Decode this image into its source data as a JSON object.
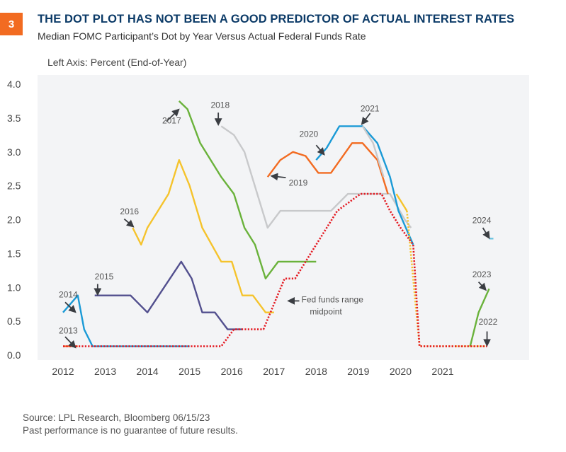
{
  "figure": {
    "number": "3",
    "title": "THE DOT PLOT HAS NOT BEEN A GOOD PREDICTOR OF ACTUAL INTEREST RATES",
    "subtitle": "Median FOMC Participant’s Dot by Year Versus Actual Federal Funds Rate",
    "axis_label": "Left Axis: Percent (End-of-Year)",
    "source": "Source: LPL Research, Bloomberg  06/15/23",
    "disclaimer": "Past performance is no guarantee of future results.",
    "badge_color": "#f26b21",
    "title_color": "#0b3a67"
  },
  "chart_data": {
    "type": "line",
    "title": "THE DOT PLOT HAS NOT BEEN A GOOD PREDICTOR OF ACTUAL INTEREST RATES",
    "subtitle": "Median FOMC Participant’s Dot by Year Versus Actual Federal Funds Rate",
    "xlabel": "",
    "ylabel": "Left Axis: Percent (End-of-Year)",
    "xlim": [
      2011.6,
      2023.2
    ],
    "ylim": [
      0,
      4.0
    ],
    "x_ticks": [
      "2012",
      "2013",
      "2014",
      "2015",
      "2016",
      "2017",
      "2018",
      "2019",
      "2020",
      "2021"
    ],
    "y_ticks": [
      "0.0",
      "0.5",
      "1.0",
      "1.5",
      "2.0",
      "2.5",
      "3.0",
      "3.5",
      "4.0"
    ],
    "grid": false,
    "background": "#f3f4f6",
    "series": [
      {
        "name": "2013",
        "color": "#f26b21",
        "style": "solid",
        "points": [
          [
            2012.0,
            0.13
          ],
          [
            2012.35,
            0.13
          ]
        ]
      },
      {
        "name": "2014",
        "color": "#1a9ad6",
        "style": "solid",
        "points": [
          [
            2012.0,
            0.63
          ],
          [
            2012.35,
            0.88
          ],
          [
            2012.5,
            0.38
          ],
          [
            2012.7,
            0.13
          ],
          [
            2015.0,
            0.13
          ]
        ]
      },
      {
        "name": "2015",
        "color": "#524f8e",
        "style": "solid",
        "points": [
          [
            2012.75,
            0.88
          ],
          [
            2013.6,
            0.88
          ],
          [
            2014.0,
            0.63
          ],
          [
            2014.8,
            1.38
          ],
          [
            2015.05,
            1.13
          ],
          [
            2015.3,
            0.63
          ],
          [
            2015.6,
            0.63
          ],
          [
            2015.9,
            0.38
          ],
          [
            2016.25,
            0.38
          ]
        ]
      },
      {
        "name": "2016",
        "color": "#f5c32c",
        "style": "solid",
        "points": [
          [
            2013.65,
            1.88
          ],
          [
            2013.85,
            1.63
          ],
          [
            2014.0,
            1.88
          ],
          [
            2014.25,
            2.13
          ],
          [
            2014.5,
            2.38
          ],
          [
            2014.75,
            2.88
          ],
          [
            2015.0,
            2.5
          ],
          [
            2015.3,
            1.88
          ],
          [
            2015.75,
            1.38
          ],
          [
            2016.0,
            1.38
          ],
          [
            2016.25,
            0.88
          ],
          [
            2016.5,
            0.88
          ],
          [
            2016.8,
            0.63
          ],
          [
            2017.0,
            0.63
          ]
        ]
      },
      {
        "name": "2017",
        "color": "#6ab23b",
        "style": "solid",
        "points": [
          [
            2014.75,
            3.75
          ],
          [
            2014.95,
            3.63
          ],
          [
            2015.25,
            3.13
          ],
          [
            2015.75,
            2.63
          ],
          [
            2016.05,
            2.38
          ],
          [
            2016.3,
            1.88
          ],
          [
            2016.55,
            1.63
          ],
          [
            2016.8,
            1.13
          ],
          [
            2017.1,
            1.38
          ],
          [
            2018.0,
            1.38
          ]
        ]
      },
      {
        "name": "2018",
        "color": "#c8c9cb",
        "style": "solid",
        "points": [
          [
            2015.75,
            3.38
          ],
          [
            2016.05,
            3.25
          ],
          [
            2016.3,
            3.0
          ],
          [
            2016.85,
            1.88
          ],
          [
            2017.15,
            2.13
          ],
          [
            2018.35,
            2.13
          ],
          [
            2018.75,
            2.38
          ],
          [
            2019.45,
            2.38
          ],
          [
            2019.75,
            2.38
          ],
          [
            2020.1,
            2.0
          ],
          [
            2020.25,
            1.88
          ]
        ]
      },
      {
        "name": "2019",
        "color": "#f26b21",
        "style": "solid",
        "points": [
          [
            2016.85,
            2.63
          ],
          [
            2017.15,
            2.88
          ],
          [
            2017.45,
            3.0
          ],
          [
            2017.75,
            2.94
          ],
          [
            2018.05,
            2.69
          ],
          [
            2018.35,
            2.69
          ],
          [
            2018.85,
            3.13
          ],
          [
            2019.1,
            3.13
          ],
          [
            2019.45,
            2.88
          ],
          [
            2019.7,
            2.38
          ]
        ]
      },
      {
        "name": "2020",
        "color": "#1a9ad6",
        "style": "solid",
        "points": [
          [
            2018.0,
            2.88
          ],
          [
            2018.25,
            3.06
          ],
          [
            2018.55,
            3.38
          ],
          [
            2019.1,
            3.38
          ],
          [
            2019.45,
            3.13
          ],
          [
            2019.75,
            2.63
          ],
          [
            2019.95,
            2.13
          ],
          [
            2020.3,
            1.63
          ]
        ]
      },
      {
        "name": "2021",
        "color": "#c8c9cb",
        "style": "solid",
        "points": [
          [
            2019.1,
            3.38
          ],
          [
            2019.35,
            3.13
          ],
          [
            2019.6,
            2.63
          ]
        ]
      },
      {
        "name": "2020 (late)",
        "color": "#f5c32c",
        "style": "solid",
        "points": [
          [
            2019.9,
            2.38
          ],
          [
            2020.15,
            2.13
          ]
        ]
      },
      {
        "name": "2020 (dotted)",
        "color": "#f5c32c",
        "style": "dotted",
        "points": [
          [
            2020.15,
            2.13
          ],
          [
            2020.3,
            1.13
          ],
          [
            2020.45,
            0.13
          ],
          [
            2021.3,
            0.13
          ]
        ]
      },
      {
        "name": "2022",
        "color": "#f5c32c",
        "style": "dotted",
        "points": [
          [
            2021.3,
            0.13
          ],
          [
            2022.05,
            0.13
          ]
        ]
      },
      {
        "name": "2023",
        "color": "#6ab23b",
        "style": "solid",
        "points": [
          [
            2021.65,
            0.13
          ],
          [
            2021.85,
            0.63
          ],
          [
            2022.1,
            0.98
          ]
        ]
      },
      {
        "name": "2024",
        "color": "#6cc3e0",
        "style": "solid",
        "points": [
          [
            2022.1,
            1.72
          ],
          [
            2022.2,
            1.72
          ]
        ]
      },
      {
        "name": "Fed funds range midpoint",
        "color": "#e41b23",
        "style": "dotted",
        "points": [
          [
            2012.0,
            0.13
          ],
          [
            2015.75,
            0.13
          ],
          [
            2016.05,
            0.38
          ],
          [
            2016.75,
            0.38
          ],
          [
            2017.25,
            1.13
          ],
          [
            2017.5,
            1.13
          ],
          [
            2018.0,
            1.63
          ],
          [
            2018.5,
            2.13
          ],
          [
            2019.05,
            2.38
          ],
          [
            2019.55,
            2.38
          ],
          [
            2019.75,
            2.13
          ],
          [
            2020.0,
            1.88
          ],
          [
            2020.3,
            1.63
          ],
          [
            2020.45,
            0.13
          ],
          [
            2022.05,
            0.13
          ]
        ]
      }
    ],
    "annotations": [
      {
        "text": "2013",
        "at": [
          2011.9,
          0.32
        ]
      },
      {
        "text": "2014",
        "at": [
          2011.9,
          0.85
        ]
      },
      {
        "text": "2015",
        "at": [
          2012.75,
          1.12
        ]
      },
      {
        "text": "2016",
        "at": [
          2013.35,
          2.08
        ]
      },
      {
        "text": "2017",
        "at": [
          2014.35,
          3.42
        ]
      },
      {
        "text": "2018",
        "at": [
          2015.5,
          3.65
        ]
      },
      {
        "text": "2019",
        "at": [
          2017.35,
          2.5
        ]
      },
      {
        "text": "2020",
        "at": [
          2017.6,
          3.22
        ]
      },
      {
        "text": "2021",
        "at": [
          2019.05,
          3.6
        ]
      },
      {
        "text": "2022",
        "at": [
          2021.85,
          0.45
        ]
      },
      {
        "text": "2023",
        "at": [
          2021.7,
          1.15
        ]
      },
      {
        "text": "2024",
        "at": [
          2021.7,
          1.95
        ]
      },
      {
        "text": "Fed funds range",
        "at": [
          2017.65,
          0.78
        ]
      },
      {
        "text": "midpoint",
        "at": [
          2017.85,
          0.6
        ]
      }
    ]
  }
}
